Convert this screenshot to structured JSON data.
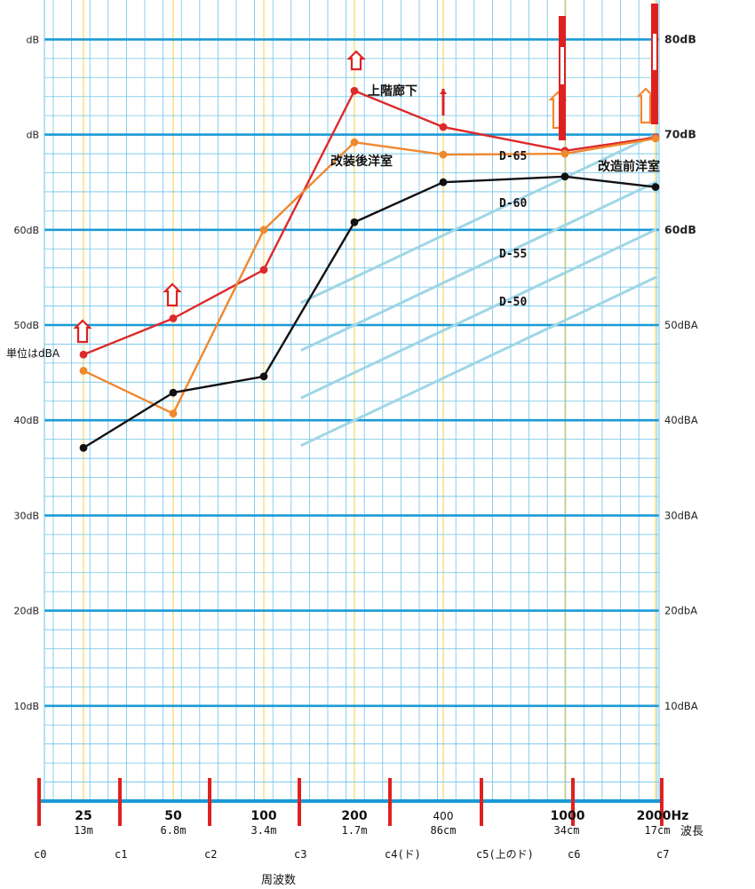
{
  "chart_data": {
    "type": "line",
    "x": [
      25,
      50,
      100,
      200,
      400,
      1000,
      2000
    ],
    "x_tick_labels": [
      "25",
      "50",
      "100",
      "200",
      "400",
      "1000",
      "2000Hz"
    ],
    "wavelength_labels": [
      "13m",
      "6.8m",
      "3.4m",
      "1.7m",
      "86cm",
      "34cm",
      "17cm"
    ],
    "wavelength_title": "波長",
    "octave_labels": [
      "c0",
      "c1",
      "c2",
      "c3",
      "c4(ド)",
      "c5(上のド)",
      "c6",
      "c7"
    ],
    "xlabel": "周波数",
    "unit_note": "単位はdBA",
    "y_left_labels": [
      "dB",
      "dB",
      "60dB",
      "50dB",
      "40dB",
      "30dB",
      "20dB",
      "10dB"
    ],
    "y_right_labels": [
      "80dB",
      "70dB",
      "60dB",
      "50dBA",
      "40dBA",
      "30dBA",
      "20dbA",
      "10dBA"
    ],
    "ylim": [
      0,
      80
    ],
    "series": [
      {
        "name": "上階廊下",
        "color": "#dd2a2a",
        "values": [
          46.9,
          50.7,
          55.8,
          74.6,
          70.8,
          68.3,
          69.7
        ]
      },
      {
        "name": "改装後洋室",
        "color": "#f0882e",
        "values": [
          45.2,
          40.7,
          60.0,
          69.2,
          67.9,
          68.0,
          69.6
        ]
      },
      {
        "name": "改造前洋室",
        "color": "#111111",
        "values": [
          37.1,
          42.9,
          44.6,
          60.8,
          65.0,
          65.6,
          64.5
        ]
      }
    ],
    "d_curves": [
      {
        "name": "D-65",
        "values": [
          null,
          null,
          null,
          55,
          60,
          65,
          70
        ]
      },
      {
        "name": "D-60",
        "values": [
          null,
          null,
          null,
          50,
          55,
          60,
          65
        ]
      },
      {
        "name": "D-55",
        "values": [
          null,
          null,
          null,
          45,
          50,
          55,
          60
        ]
      },
      {
        "name": "D-50",
        "values": [
          null,
          null,
          null,
          40,
          45,
          50,
          55
        ]
      }
    ],
    "colors": {
      "grid": "#1a9ad6",
      "minor_grid": "#6ec3e8",
      "vertical_grid": "#f1d24a",
      "d_curve": "#9fd6e6",
      "marker": "#e02020"
    }
  }
}
